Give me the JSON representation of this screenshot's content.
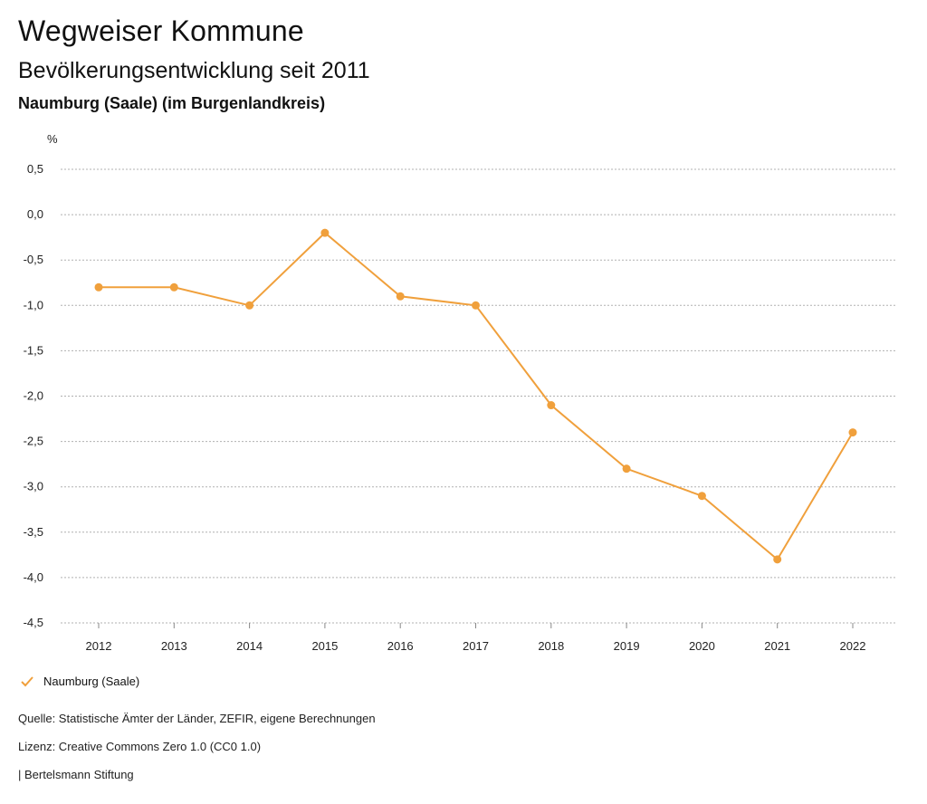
{
  "header": {
    "title": "Wegweiser Kommune",
    "subtitle": "Bevölkerungsentwicklung seit 2011",
    "place": "Naumburg (Saale) (im Burgenlandkreis)"
  },
  "chart_data": {
    "type": "line",
    "ylabel": "%",
    "ylim": [
      -4.5,
      0.5
    ],
    "yticks": [
      0.5,
      0.0,
      -0.5,
      -1.0,
      -1.5,
      -2.0,
      -2.5,
      -3.0,
      -3.5,
      -4.0,
      -4.5
    ],
    "ytick_labels": [
      "0,5",
      "0,0",
      "-0,5",
      "-1,0",
      "-1,5",
      "-2,0",
      "-2,5",
      "-3,0",
      "-3,5",
      "-4,0",
      "-4,5"
    ],
    "categories": [
      "2012",
      "2013",
      "2014",
      "2015",
      "2016",
      "2017",
      "2018",
      "2019",
      "2020",
      "2021",
      "2022"
    ],
    "series": [
      {
        "name": "Naumburg (Saale)",
        "color": "#f0a03c",
        "values": [
          -0.8,
          -0.8,
          -1.0,
          -0.2,
          -0.9,
          -1.0,
          -2.1,
          -2.8,
          -3.1,
          -3.8,
          -2.4
        ]
      }
    ],
    "grid": true,
    "legend": "bottom-left"
  },
  "footer": {
    "source": "Quelle: Statistische Ämter der Länder, ZEFIR, eigene Berechnungen",
    "license": "Lizenz: Creative Commons Zero 1.0 (CC0 1.0)",
    "brand": "| Bertelsmann Stiftung"
  }
}
